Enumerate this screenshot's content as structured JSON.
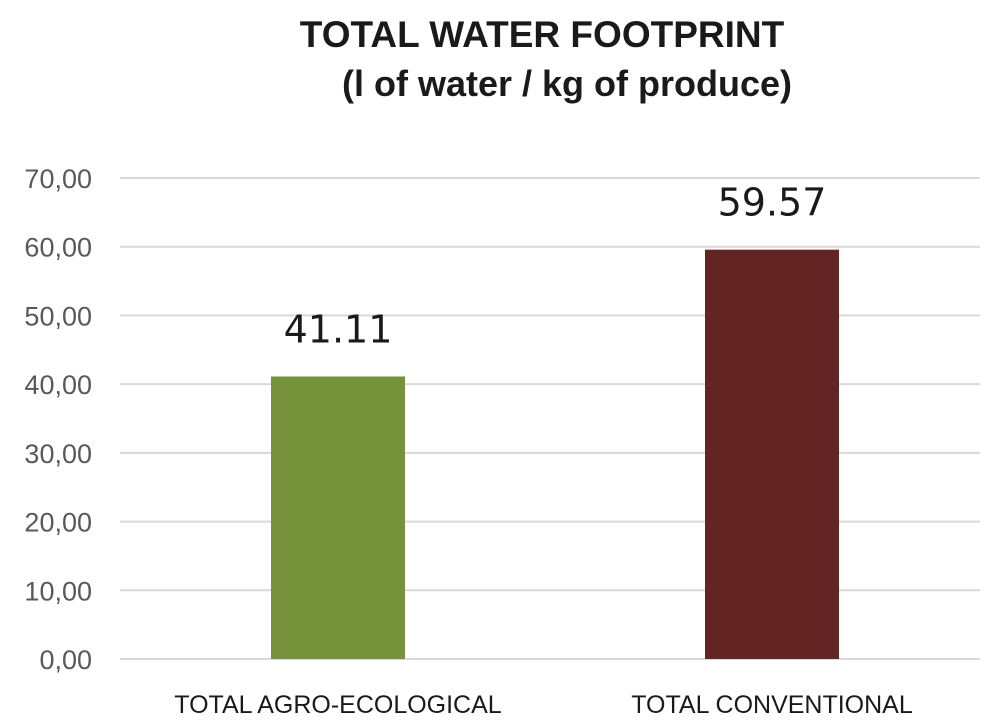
{
  "chart_data": {
    "type": "bar",
    "title": "TOTAL WATER FOOTPRINT",
    "subtitle": "(l of water / kg of produce)",
    "categories": [
      "TOTAL AGRO-ECOLOGICAL",
      "TOTAL CONVENTIONAL"
    ],
    "values": [
      41.11,
      59.57
    ],
    "data_labels": [
      "41.11",
      "59.57"
    ],
    "bar_colors": [
      "#76933c",
      "#632523"
    ],
    "ylim": [
      0,
      70
    ],
    "y_ticks": [
      "0,00",
      "10,00",
      "20,00",
      "30,00",
      "40,00",
      "50,00",
      "60,00",
      "70,00"
    ],
    "y_tick_values": [
      0,
      10,
      20,
      30,
      40,
      50,
      60,
      70
    ],
    "grid": true,
    "legend": "none",
    "xlabel": "",
    "ylabel": ""
  }
}
